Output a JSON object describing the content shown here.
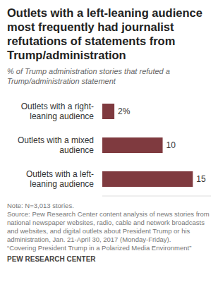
{
  "chart_data": {
    "type": "bar",
    "orientation": "horizontal",
    "title": "Outlets with a left-leaning audience most frequently had journalist refutations of statements from Trump/administration",
    "subtitle": "% of Trump administration stories that refuted a Trump/administration statement",
    "categories": [
      "Outlets with a right-leaning audience",
      "Outlets with a mixed audience",
      "Outlets with a left-leaning audience"
    ],
    "values": [
      2,
      10,
      15
    ],
    "value_labels": [
      "2%",
      "10",
      "15"
    ],
    "data_labels": true,
    "color": "#7f3a3f",
    "xlim": [
      0,
      18
    ],
    "tick_labels": "y",
    "grid": false,
    "note": "Note: N=3,013 stories.",
    "source": "Source: Pew Research Center content analysis of news stories from national newspaper websites, radio, cable and network broadcasts and websites, and digital outlets about President Trump or his administration, Jan. 21-April 30, 2017 (Monday-Friday).",
    "report": "“Covering President Trump in a Polarized Media Environment”",
    "credit": "PEW RESEARCH CENTER"
  }
}
